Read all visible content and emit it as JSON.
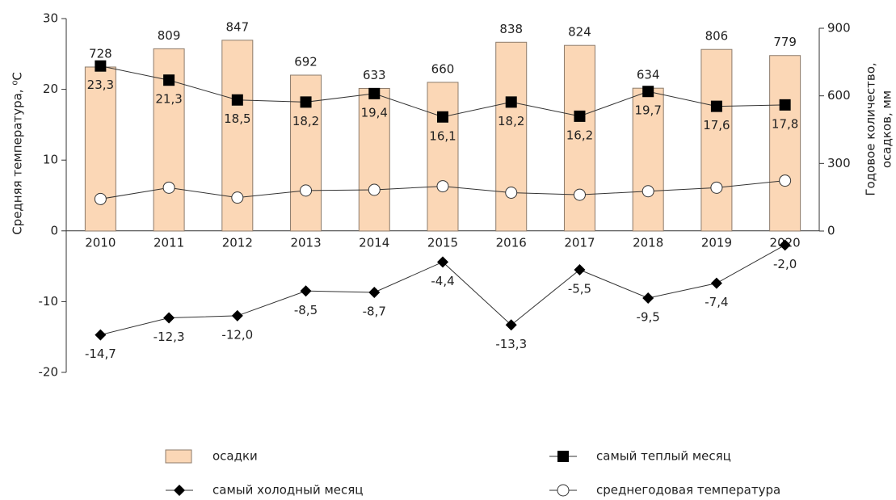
{
  "chart_data": {
    "type": "bar-line",
    "categories": [
      "2010",
      "2011",
      "2012",
      "2013",
      "2014",
      "2015",
      "2016",
      "2017",
      "2018",
      "2019",
      "2020"
    ],
    "ylabel": "Средняя температура, ⁰С",
    "y2label": [
      "Годовое количество,",
      "осадков, мм"
    ],
    "ylim": [
      -20,
      30
    ],
    "yticks": [
      -20,
      -10,
      0,
      10,
      20,
      30
    ],
    "y2lim": [
      0,
      900
    ],
    "y2ticks": [
      0,
      300,
      600,
      900
    ],
    "series": [
      {
        "name": "осадки",
        "kind": "bar",
        "axis": "y2",
        "color": "#fbd7b6",
        "values": [
          728,
          809,
          847,
          692,
          633,
          660,
          838,
          824,
          634,
          806,
          779
        ]
      },
      {
        "name": "самый теплый месяц",
        "kind": "square",
        "color": "#000000",
        "values": [
          23.3,
          21.3,
          18.5,
          18.2,
          19.4,
          16.1,
          18.2,
          16.2,
          19.7,
          17.6,
          17.8
        ],
        "value_labels": [
          "23,3",
          "21,3",
          "18,5",
          "18,2",
          "19,4",
          "16,1",
          "18,2",
          "16,2",
          "19,7",
          "17,6",
          "17,8"
        ]
      },
      {
        "name": "самый холодный месяц",
        "kind": "diamond",
        "color": "#000000",
        "values": [
          -14.7,
          -12.3,
          -12.0,
          -8.5,
          -8.7,
          -4.4,
          -13.3,
          -5.5,
          -9.5,
          -7.4,
          -2.0
        ],
        "value_labels": [
          "-14,7",
          "-12,3",
          "-12,0",
          "-8,5",
          "-8,7",
          "-4,4",
          "-13,3",
          "-5,5",
          "-9,5",
          "-7,4",
          "-2,0"
        ]
      },
      {
        "name": "среднегодовая температура",
        "kind": "circle",
        "color": "#ffffff",
        "values": [
          4.5,
          6.1,
          4.7,
          5.7,
          5.8,
          6.3,
          5.4,
          5.1,
          5.6,
          6.1,
          7.1
        ]
      }
    ]
  }
}
